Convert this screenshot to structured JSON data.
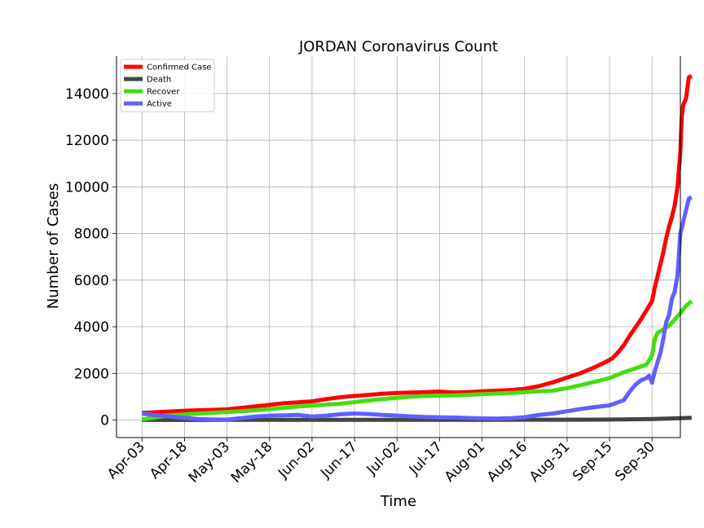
{
  "chart_data": {
    "type": "line",
    "title": "JORDAN Coronavirus Count",
    "xlabel": "Time",
    "ylabel": "Number of Cases",
    "grid": true,
    "legend_position": "top-left",
    "x_tick_labels": [
      "Apr-03",
      "Apr-18",
      "May-03",
      "May-18",
      "Jun-02",
      "Jun-17",
      "Jul-02",
      "Jul-17",
      "Aug-01",
      "Aug-16",
      "Aug-31",
      "Sep-15",
      "Sep-30"
    ],
    "y_ticks": [
      0,
      2000,
      4000,
      6000,
      8000,
      10000,
      12000,
      14000
    ],
    "ylim": [
      -750,
      15600
    ],
    "x_start_date": "2020-04-03",
    "xlim_days": [
      -9,
      190
    ],
    "series": [
      {
        "name": "Confirmed Case",
        "color": "#ff0000",
        "points": [
          [
            0,
            310
          ],
          [
            15,
            400
          ],
          [
            30,
            460
          ],
          [
            38,
            560
          ],
          [
            45,
            650
          ],
          [
            50,
            720
          ],
          [
            55,
            760
          ],
          [
            60,
            800
          ],
          [
            65,
            900
          ],
          [
            70,
            980
          ],
          [
            75,
            1030
          ],
          [
            80,
            1080
          ],
          [
            85,
            1130
          ],
          [
            90,
            1160
          ],
          [
            95,
            1180
          ],
          [
            100,
            1200
          ],
          [
            105,
            1220
          ],
          [
            110,
            1180
          ],
          [
            115,
            1200
          ],
          [
            120,
            1230
          ],
          [
            125,
            1260
          ],
          [
            130,
            1290
          ],
          [
            135,
            1340
          ],
          [
            140,
            1450
          ],
          [
            145,
            1620
          ],
          [
            150,
            1820
          ],
          [
            155,
            2020
          ],
          [
            160,
            2280
          ],
          [
            163,
            2450
          ],
          [
            166,
            2650
          ],
          [
            168,
            2900
          ],
          [
            170,
            3200
          ],
          [
            172,
            3600
          ],
          [
            174,
            3950
          ],
          [
            176,
            4300
          ],
          [
            178,
            4700
          ],
          [
            180,
            5100
          ],
          [
            181,
            5700
          ],
          [
            182,
            6200
          ],
          [
            183,
            6700
          ],
          [
            184,
            7200
          ],
          [
            185,
            7800
          ],
          [
            186,
            8300
          ],
          [
            187,
            8700
          ],
          [
            188,
            9200
          ],
          [
            189,
            10000
          ],
          [
            190,
            11500
          ],
          [
            190.5,
            13000
          ],
          [
            191,
            13500
          ],
          [
            192,
            13800
          ],
          [
            193,
            14700
          ],
          [
            194,
            14750
          ]
        ]
      },
      {
        "name": "Death",
        "color": "#444444",
        "points": [
          [
            0,
            5
          ],
          [
            30,
            9
          ],
          [
            60,
            9
          ],
          [
            90,
            11
          ],
          [
            120,
            11
          ],
          [
            150,
            14
          ],
          [
            160,
            18
          ],
          [
            170,
            28
          ],
          [
            180,
            45
          ],
          [
            185,
            60
          ],
          [
            190,
            80
          ],
          [
            194,
            95
          ]
        ]
      },
      {
        "name": "Recover",
        "color": "#44dd11",
        "points": [
          [
            0,
            30
          ],
          [
            10,
            200
          ],
          [
            20,
            280
          ],
          [
            30,
            340
          ],
          [
            40,
            420
          ],
          [
            50,
            520
          ],
          [
            55,
            580
          ],
          [
            60,
            620
          ],
          [
            65,
            660
          ],
          [
            70,
            700
          ],
          [
            75,
            770
          ],
          [
            80,
            840
          ],
          [
            85,
            900
          ],
          [
            90,
            950
          ],
          [
            95,
            1000
          ],
          [
            100,
            1030
          ],
          [
            110,
            1060
          ],
          [
            120,
            1110
          ],
          [
            130,
            1160
          ],
          [
            140,
            1230
          ],
          [
            145,
            1260
          ],
          [
            150,
            1370
          ],
          [
            155,
            1500
          ],
          [
            160,
            1650
          ],
          [
            165,
            1800
          ],
          [
            170,
            2050
          ],
          [
            175,
            2250
          ],
          [
            178,
            2380
          ],
          [
            180,
            2750
          ],
          [
            181,
            3500
          ],
          [
            182,
            3750
          ],
          [
            184,
            3880
          ],
          [
            186,
            4050
          ],
          [
            188,
            4300
          ],
          [
            190,
            4600
          ],
          [
            192,
            4900
          ],
          [
            194,
            5100
          ]
        ]
      },
      {
        "name": "Active",
        "color": "#6060ff",
        "points": [
          [
            0,
            270
          ],
          [
            10,
            150
          ],
          [
            20,
            40
          ],
          [
            30,
            20
          ],
          [
            40,
            150
          ],
          [
            45,
            190
          ],
          [
            50,
            200
          ],
          [
            55,
            220
          ],
          [
            60,
            150
          ],
          [
            65,
            190
          ],
          [
            70,
            250
          ],
          [
            75,
            280
          ],
          [
            80,
            260
          ],
          [
            85,
            220
          ],
          [
            90,
            190
          ],
          [
            95,
            160
          ],
          [
            100,
            130
          ],
          [
            105,
            120
          ],
          [
            110,
            110
          ],
          [
            115,
            90
          ],
          [
            120,
            70
          ],
          [
            125,
            60
          ],
          [
            130,
            80
          ],
          [
            135,
            120
          ],
          [
            140,
            220
          ],
          [
            145,
            280
          ],
          [
            150,
            380
          ],
          [
            155,
            480
          ],
          [
            160,
            560
          ],
          [
            165,
            630
          ],
          [
            170,
            850
          ],
          [
            172,
            1200
          ],
          [
            174,
            1500
          ],
          [
            176,
            1700
          ],
          [
            178,
            1800
          ],
          [
            179,
            1900
          ],
          [
            180,
            1600
          ],
          [
            181,
            2100
          ],
          [
            182,
            2500
          ],
          [
            183,
            2900
          ],
          [
            184,
            3500
          ],
          [
            185,
            4200
          ],
          [
            186,
            4500
          ],
          [
            187,
            5200
          ],
          [
            188,
            5500
          ],
          [
            189,
            6200
          ],
          [
            190,
            8000
          ],
          [
            191,
            8500
          ],
          [
            192,
            9000
          ],
          [
            193,
            9500
          ],
          [
            194,
            9550
          ]
        ]
      }
    ]
  }
}
